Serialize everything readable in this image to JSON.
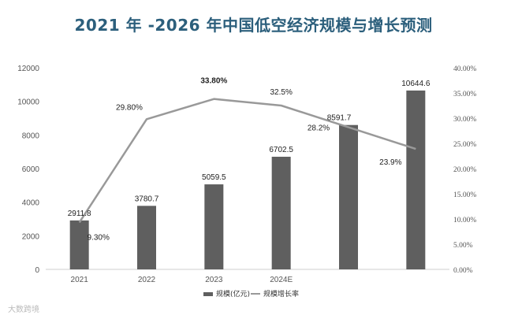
{
  "chart_data": {
    "type": "bar",
    "title": "2021 年 -2026 年中国低空经济规模与增长预测",
    "categories": [
      "2021",
      "2022",
      "2023",
      "2024E",
      "",
      ""
    ],
    "series": [
      {
        "name": "规模(亿元)",
        "type": "bar",
        "values": [
          2911.8,
          3780.7,
          5059.5,
          6702.5,
          8591.7,
          10644.6
        ],
        "labels": [
          "2911.8",
          "3780.7",
          "5059.5",
          "6702.5",
          "8591.7",
          "10644.6"
        ],
        "color": "#5f5f5f"
      },
      {
        "name": "规模增长率",
        "type": "line",
        "axis": "right",
        "values": [
          9.3,
          29.8,
          33.8,
          32.5,
          28.2,
          23.9
        ],
        "labels": [
          "9.30%",
          "29.80%",
          "33.80%",
          "32.5%",
          "28.2%",
          "23.9%"
        ],
        "color": "#999999"
      }
    ],
    "y_left": {
      "range": [
        0,
        12000
      ],
      "ticks": [
        0,
        2000,
        4000,
        6000,
        8000,
        10000,
        12000
      ],
      "tick_labels": [
        "0",
        "2000",
        "4000",
        "6000",
        "8000",
        "10000",
        "12000"
      ]
    },
    "y_right": {
      "range": [
        0,
        40
      ],
      "ticks": [
        0,
        5,
        10,
        15,
        20,
        25,
        30,
        35,
        40
      ],
      "tick_labels": [
        "0.00%",
        "5.00%",
        "10.00%",
        "15.00%",
        "20.00%",
        "25.00%",
        "30.00%",
        "35.00%",
        "40.00%"
      ]
    },
    "legend": {
      "position": "bottom",
      "items": [
        "规模(亿元)",
        "规模增长率"
      ]
    },
    "grid": false
  },
  "watermark": "大数跨境"
}
